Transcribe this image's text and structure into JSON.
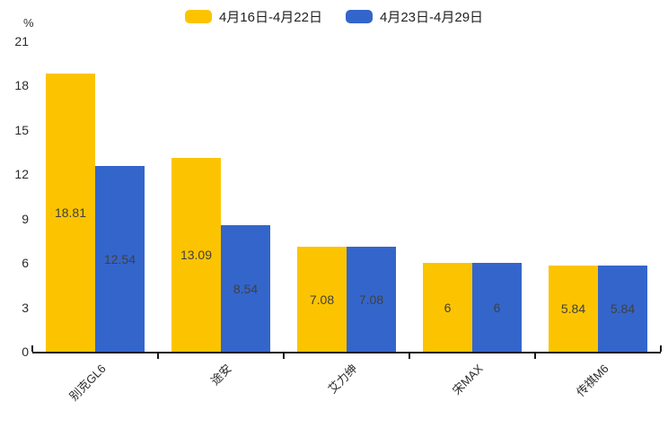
{
  "chart_data": {
    "type": "bar",
    "title": "",
    "unit_label": "%",
    "categories": [
      "别克GL6",
      "途安",
      "艾力绅",
      "宋MAX",
      "传祺M6"
    ],
    "series": [
      {
        "name": "4月16日-4月22日",
        "color": "#fcc400",
        "values": [
          18.81,
          13.09,
          7.08,
          6,
          5.84
        ],
        "labels": [
          "18.81",
          "13.09",
          "7.08",
          "6",
          "5.84"
        ]
      },
      {
        "name": "4月23日-4月29日",
        "color": "#3465cb",
        "values": [
          12.54,
          8.54,
          7.08,
          6,
          5.84
        ],
        "labels": [
          "12.54",
          "8.54",
          "7.08",
          "6",
          "5.84"
        ]
      }
    ],
    "ylim": [
      0,
      21
    ],
    "yticks": [
      0,
      3,
      6,
      9,
      12,
      15,
      18,
      21
    ],
    "legend_position": "top",
    "grid": false,
    "axis_color": "#171717",
    "value_label_color": "#404040"
  }
}
